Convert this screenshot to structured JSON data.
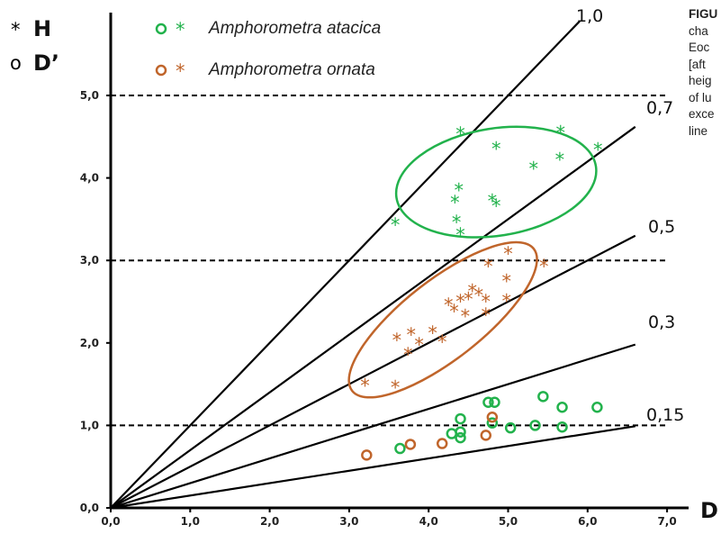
{
  "chart_data": {
    "type": "scatter",
    "xlabel": "D",
    "ylabel_symbols": [
      {
        "symbol": "*",
        "label": "H"
      },
      {
        "symbol": "o",
        "label": "D’"
      }
    ],
    "xlim": [
      0,
      7
    ],
    "ylim": [
      0,
      6
    ],
    "x_ticks": [
      "0,0",
      "1,0",
      "2,0",
      "3,0",
      "4,0",
      "5,0",
      "6,0",
      "7,0"
    ],
    "y_ticks": [
      "0,0",
      "1,0",
      "2,0",
      "3,0",
      "4,0",
      "5,0"
    ],
    "reference_lines": [
      {
        "slope": 1.0,
        "label": "1,0"
      },
      {
        "slope": 0.7,
        "label": "0,7"
      },
      {
        "slope": 0.5,
        "label": "0,5"
      },
      {
        "slope": 0.3,
        "label": "0,3"
      },
      {
        "slope": 0.15,
        "label": "0,15"
      }
    ],
    "horizontal_dashed_lines": [
      1.0,
      3.0,
      5.0
    ],
    "series": [
      {
        "name": "Amphorometra atacica",
        "color": "#22b24c",
        "H": [
          [
            3.58,
            3.45
          ],
          [
            4.33,
            3.72
          ],
          [
            4.38,
            3.87
          ],
          [
            4.35,
            3.48
          ],
          [
            4.4,
            3.33
          ],
          [
            4.4,
            4.55
          ],
          [
            4.8,
            3.74
          ],
          [
            4.85,
            3.68
          ],
          [
            4.85,
            4.37
          ],
          [
            5.32,
            4.13
          ],
          [
            5.66,
            4.57
          ],
          [
            5.65,
            4.24
          ],
          [
            6.13,
            4.36
          ]
        ],
        "D_prime": [
          [
            3.64,
            0.72
          ],
          [
            4.29,
            0.9
          ],
          [
            4.4,
            0.92
          ],
          [
            4.4,
            1.08
          ],
          [
            4.4,
            0.85
          ],
          [
            4.75,
            1.28
          ],
          [
            4.83,
            1.28
          ],
          [
            4.8,
            1.03
          ],
          [
            5.03,
            0.97
          ],
          [
            5.34,
            1.0
          ],
          [
            5.44,
            1.35
          ],
          [
            5.68,
            1.22
          ],
          [
            5.68,
            0.98
          ],
          [
            6.12,
            1.22
          ]
        ],
        "ellipse": {
          "cx": 4.85,
          "cy": 3.95,
          "rx": 1.27,
          "ry": 0.65,
          "rotation_deg": -9
        }
      },
      {
        "name": "Amphorometra ornata",
        "color": "#c0652b",
        "H": [
          [
            3.2,
            1.5
          ],
          [
            3.58,
            1.48
          ],
          [
            3.6,
            2.05
          ],
          [
            3.74,
            1.88
          ],
          [
            3.78,
            2.12
          ],
          [
            3.88,
            2.0
          ],
          [
            4.05,
            2.14
          ],
          [
            4.17,
            2.03
          ],
          [
            4.25,
            2.48
          ],
          [
            4.32,
            2.4
          ],
          [
            4.4,
            2.52
          ],
          [
            4.46,
            2.34
          ],
          [
            4.5,
            2.55
          ],
          [
            4.55,
            2.65
          ],
          [
            4.63,
            2.6
          ],
          [
            4.72,
            2.36
          ],
          [
            4.72,
            2.52
          ],
          [
            4.75,
            2.95
          ],
          [
            4.98,
            2.53
          ],
          [
            4.98,
            2.77
          ],
          [
            5.0,
            3.1
          ],
          [
            5.45,
            2.95
          ]
        ],
        "D_prime": [
          [
            3.22,
            0.64
          ],
          [
            3.77,
            0.77
          ],
          [
            4.17,
            0.78
          ],
          [
            4.72,
            0.88
          ],
          [
            4.8,
            1.1
          ]
        ],
        "ellipse": {
          "cx": 4.18,
          "cy": 2.28,
          "rx": 1.45,
          "ry": 0.48,
          "rotation_deg": -38
        }
      }
    ]
  },
  "legend": [
    {
      "label": "Amphorometra atacica",
      "color": "#22b24c"
    },
    {
      "label": "Amphorometra ornata",
      "color": "#c0652b"
    }
  ],
  "caption_lines": [
    {
      "text": "FIGU",
      "bold": true
    },
    {
      "text": "cha",
      "bold": false
    },
    {
      "text": "Eoc",
      "bold": false
    },
    {
      "text": "[aft",
      "bold": false
    },
    {
      "text": "heig",
      "bold": false
    },
    {
      "text": "of lu",
      "bold": false
    },
    {
      "text": "exce",
      "bold": false
    },
    {
      "text": "line",
      "bold": false
    }
  ]
}
